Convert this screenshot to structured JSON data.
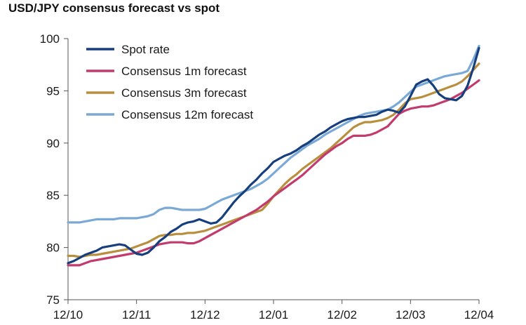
{
  "chart_data": {
    "type": "line",
    "title": "USD/JPY consensus forecast vs spot",
    "xlabel": "",
    "ylabel": "",
    "ylim": [
      75,
      100
    ],
    "yticks": [
      75,
      80,
      85,
      90,
      95,
      100
    ],
    "x_ticks": [
      "12/10",
      "12/11",
      "12/12",
      "12/01",
      "12/02",
      "12/03",
      "12/04"
    ],
    "grid": false,
    "legend_position": "top-left",
    "x": [
      "12/10",
      "01/11",
      "02/11",
      "03/11",
      "04/11",
      "05/11",
      "06/11",
      "07/11",
      "08/11",
      "09/11",
      "10/11",
      "11/11",
      "12/11",
      "01/12",
      "02/12",
      "03/12",
      "04/12",
      "05/12",
      "06/12",
      "07/12",
      "08/12",
      "09/12",
      "10/12",
      "11/12",
      "12/12",
      "01/01",
      "02/01",
      "03/01",
      "04/01",
      "05/01",
      "06/01",
      "07/01",
      "08/01",
      "09/01",
      "10/01",
      "11/01",
      "12/01",
      "01/02",
      "02/02",
      "03/02",
      "04/02",
      "05/02",
      "06/02",
      "07/02",
      "08/02",
      "09/02",
      "10/02",
      "11/02",
      "12/02",
      "01/03",
      "02/03",
      "03/03",
      "04/03",
      "05/03",
      "06/03",
      "07/03",
      "08/03",
      "09/03",
      "10/03",
      "11/03",
      "12/03",
      "01/04",
      "02/04",
      "03/04",
      "04/04",
      "05/04",
      "06/04",
      "07/04",
      "08/04",
      "09/04",
      "10/04",
      "11/04",
      "12/04"
    ],
    "series": [
      {
        "name": "Spot rate",
        "color": "#173f7d",
        "values": [
          78.5,
          78.7,
          79.0,
          79.3,
          79.5,
          79.7,
          80.0,
          80.1,
          80.2,
          80.3,
          80.2,
          79.8,
          79.4,
          79.3,
          79.5,
          80.0,
          80.6,
          81.0,
          81.5,
          81.8,
          82.2,
          82.4,
          82.5,
          82.7,
          82.5,
          82.3,
          82.4,
          82.9,
          83.6,
          84.3,
          84.9,
          85.4,
          86.0,
          86.5,
          87.1,
          87.6,
          88.2,
          88.5,
          88.8,
          89.0,
          89.3,
          89.7,
          90.0,
          90.4,
          90.8,
          91.1,
          91.5,
          91.8,
          92.1,
          92.3,
          92.4,
          92.5,
          92.5,
          92.6,
          92.7,
          93.0,
          93.2,
          93.1,
          92.9,
          93.5,
          94.5,
          95.6,
          95.9,
          96.1,
          95.5,
          94.7,
          94.3,
          94.2,
          94.1,
          94.5,
          95.5,
          97.2,
          99.1
        ]
      },
      {
        "name": "Consensus 1m forecast",
        "color": "#c23b6d",
        "values": [
          78.3,
          78.3,
          78.3,
          78.5,
          78.7,
          78.8,
          78.9,
          79.0,
          79.1,
          79.2,
          79.3,
          79.4,
          79.5,
          79.7,
          79.9,
          80.1,
          80.3,
          80.4,
          80.5,
          80.5,
          80.5,
          80.4,
          80.4,
          80.6,
          80.9,
          81.2,
          81.5,
          81.8,
          82.1,
          82.4,
          82.7,
          83.0,
          83.3,
          83.6,
          84.0,
          84.4,
          84.9,
          85.3,
          85.7,
          86.1,
          86.5,
          86.9,
          87.4,
          87.9,
          88.4,
          88.9,
          89.3,
          89.7,
          90.0,
          90.4,
          90.7,
          90.7,
          90.7,
          90.8,
          91.0,
          91.3,
          91.6,
          92.2,
          92.8,
          93.1,
          93.3,
          93.4,
          93.5,
          93.5,
          93.6,
          93.8,
          94.0,
          94.2,
          94.5,
          94.8,
          95.2,
          95.6,
          96.0
        ]
      },
      {
        "name": "Consensus 3m forecast",
        "color": "#b88f3f",
        "values": [
          79.2,
          79.2,
          79.1,
          79.2,
          79.3,
          79.3,
          79.4,
          79.5,
          79.6,
          79.7,
          79.8,
          79.9,
          80.1,
          80.3,
          80.5,
          80.8,
          81.1,
          81.2,
          81.2,
          81.3,
          81.3,
          81.4,
          81.4,
          81.5,
          81.6,
          81.8,
          82.0,
          82.2,
          82.4,
          82.6,
          82.8,
          83.0,
          83.2,
          83.4,
          83.6,
          84.2,
          84.9,
          85.5,
          86.1,
          86.6,
          87.0,
          87.5,
          87.9,
          88.3,
          88.7,
          89.1,
          89.5,
          90.0,
          90.5,
          91.0,
          91.5,
          91.8,
          92.0,
          92.0,
          92.1,
          92.2,
          92.4,
          92.7,
          93.2,
          93.8,
          94.2,
          94.3,
          94.4,
          94.6,
          94.8,
          95.0,
          95.2,
          95.4,
          95.6,
          95.9,
          96.4,
          97.0,
          97.6
        ]
      },
      {
        "name": "Consensus 12m forecast",
        "color": "#7aa9d6",
        "values": [
          82.4,
          82.4,
          82.4,
          82.5,
          82.6,
          82.7,
          82.7,
          82.7,
          82.7,
          82.8,
          82.8,
          82.8,
          82.8,
          82.9,
          83.0,
          83.2,
          83.6,
          83.8,
          83.8,
          83.7,
          83.6,
          83.6,
          83.6,
          83.6,
          83.7,
          84.0,
          84.3,
          84.6,
          84.8,
          85.0,
          85.2,
          85.4,
          85.6,
          85.9,
          86.2,
          86.6,
          87.1,
          87.6,
          88.1,
          88.6,
          89.0,
          89.4,
          89.8,
          90.1,
          90.4,
          90.8,
          91.1,
          91.4,
          91.7,
          92.0,
          92.3,
          92.6,
          92.8,
          92.9,
          93.0,
          93.1,
          93.2,
          93.5,
          93.9,
          94.4,
          94.9,
          95.4,
          95.6,
          95.8,
          96.0,
          96.2,
          96.4,
          96.5,
          96.6,
          96.7,
          96.9,
          98.0,
          99.3
        ]
      }
    ]
  }
}
